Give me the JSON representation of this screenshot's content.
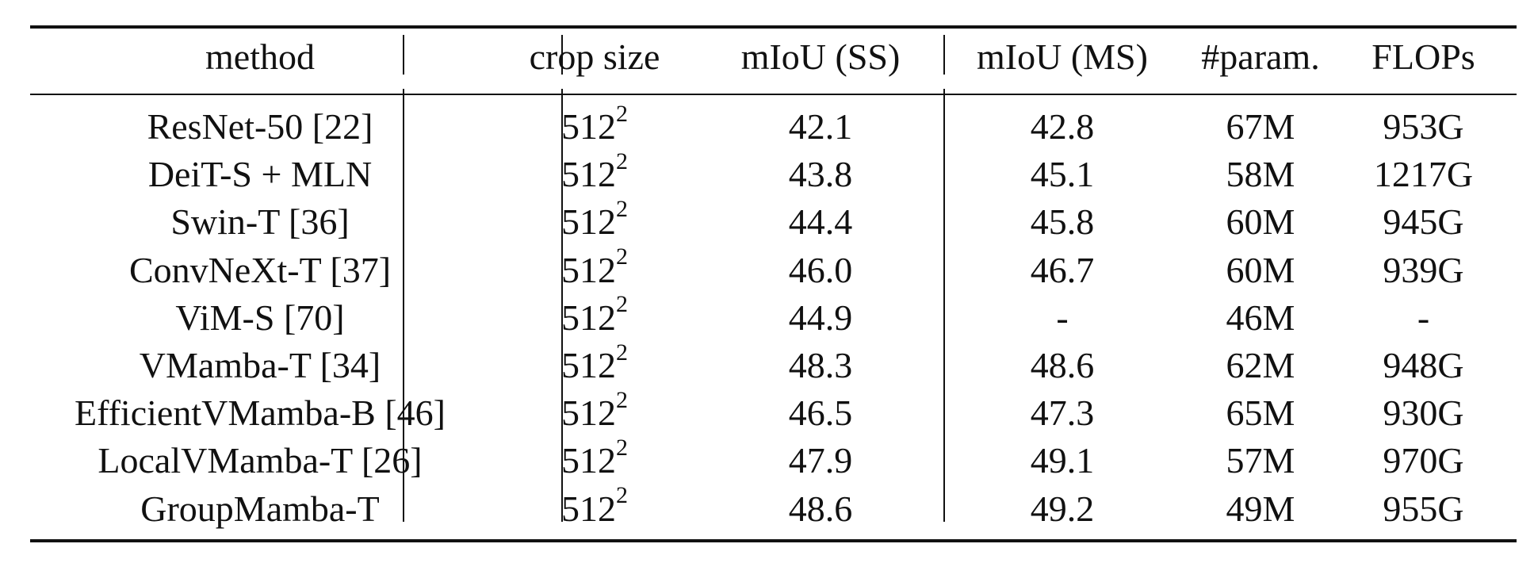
{
  "table": {
    "headers": {
      "method": "method",
      "crop_size": "crop size",
      "miou_ss": "mIoU (SS)",
      "miou_ms": "mIoU (MS)",
      "params": "#param.",
      "flops": "FLOPs"
    },
    "rows": [
      {
        "method": "ResNet-50 [22]",
        "crop_base": "512",
        "crop_exp": "2",
        "miou_ss": "42.1",
        "miou_ms": "42.8",
        "params": "67M",
        "flops": "953G"
      },
      {
        "method": "DeiT-S + MLN",
        "crop_base": "512",
        "crop_exp": "2",
        "miou_ss": "43.8",
        "miou_ms": "45.1",
        "params": "58M",
        "flops": "1217G"
      },
      {
        "method": "Swin-T [36]",
        "crop_base": "512",
        "crop_exp": "2",
        "miou_ss": "44.4",
        "miou_ms": "45.8",
        "params": "60M",
        "flops": "945G"
      },
      {
        "method": "ConvNeXt-T [37]",
        "crop_base": "512",
        "crop_exp": "2",
        "miou_ss": "46.0",
        "miou_ms": "46.7",
        "params": "60M",
        "flops": "939G"
      },
      {
        "method": "ViM-S [70]",
        "crop_base": "512",
        "crop_exp": "2",
        "miou_ss": "44.9",
        "miou_ms": "-",
        "params": "46M",
        "flops": "-"
      },
      {
        "method": "VMamba-T [34]",
        "crop_base": "512",
        "crop_exp": "2",
        "miou_ss": "48.3",
        "miou_ms": "48.6",
        "params": "62M",
        "flops": "948G"
      },
      {
        "method": "EfficientVMamba-B [46]",
        "crop_base": "512",
        "crop_exp": "2",
        "miou_ss": "46.5",
        "miou_ms": "47.3",
        "params": "65M",
        "flops": "930G"
      },
      {
        "method": "LocalVMamba-T [26]",
        "crop_base": "512",
        "crop_exp": "2",
        "miou_ss": "47.9",
        "miou_ms": "49.1",
        "params": "57M",
        "flops": "970G"
      },
      {
        "method": "GroupMamba-T",
        "crop_base": "512",
        "crop_exp": "2",
        "miou_ss": "48.6",
        "miou_ms": "49.2",
        "params": "49M",
        "flops": "955G"
      }
    ]
  }
}
